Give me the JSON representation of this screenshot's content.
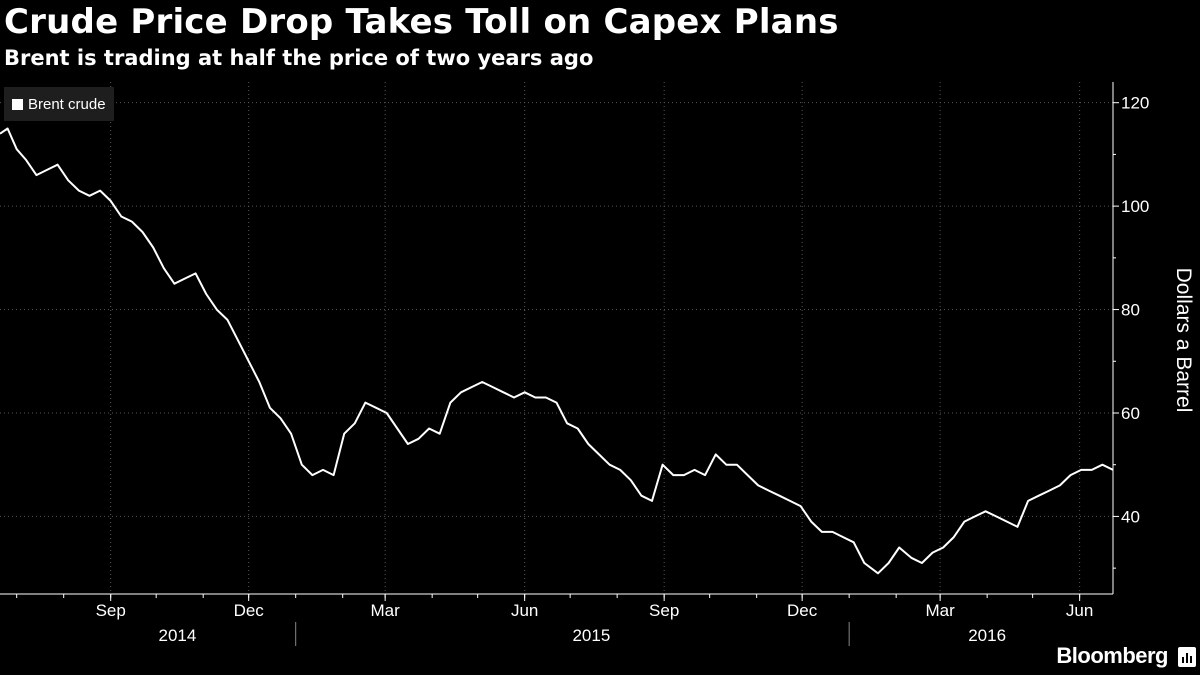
{
  "title": "Crude Price Drop Takes Toll on Capex Plans",
  "subtitle": "Brent is trading at half the price of two years ago",
  "brand": "Bloomberg",
  "colors": {
    "background": "#000000",
    "line": "#ffffff",
    "grid": "#555555",
    "legend_bg": "#1e1e1e"
  },
  "chart_data": {
    "type": "line",
    "title": "Crude Price Drop Takes Toll on Capex Plans",
    "subtitle": "Brent is trading at half the price of two years ago",
    "ylabel": "Dollars a Barrel",
    "xlabel": "",
    "y_axis_side": "right",
    "ylim": [
      25,
      124
    ],
    "xlim": [
      "2014-06-20",
      "2016-06-23"
    ],
    "y_ticks": [
      40,
      60,
      80,
      100,
      120
    ],
    "y_tick_labels": [
      "40",
      "60",
      "80",
      "100",
      "120"
    ],
    "x_ticks": [
      {
        "date": "2014-09-01",
        "label": "Sep"
      },
      {
        "date": "2014-12-01",
        "label": "Dec"
      },
      {
        "date": "2015-03-01",
        "label": "Mar"
      },
      {
        "date": "2015-06-01",
        "label": "Jun"
      },
      {
        "date": "2015-09-01",
        "label": "Sep"
      },
      {
        "date": "2015-12-01",
        "label": "Dec"
      },
      {
        "date": "2016-03-01",
        "label": "Mar"
      },
      {
        "date": "2016-06-01",
        "label": "Jun"
      }
    ],
    "year_labels": [
      {
        "date": "2014-10-15",
        "label": "2014"
      },
      {
        "date": "2015-07-15",
        "label": "2015"
      },
      {
        "date": "2016-04-01",
        "label": "2016"
      }
    ],
    "year_dividers": [
      "2015-01-01",
      "2016-01-01"
    ],
    "grid": true,
    "legend": {
      "position": "top-left",
      "entries": [
        "Brent crude"
      ]
    },
    "series": [
      {
        "name": "Brent crude",
        "color": "#ffffff",
        "x": [
          "2014-06-20",
          "2014-06-25",
          "2014-07-01",
          "2014-07-07",
          "2014-07-14",
          "2014-07-21",
          "2014-07-28",
          "2014-08-04",
          "2014-08-11",
          "2014-08-18",
          "2014-08-25",
          "2014-09-01",
          "2014-09-08",
          "2014-09-15",
          "2014-09-22",
          "2014-09-29",
          "2014-10-06",
          "2014-10-13",
          "2014-10-20",
          "2014-10-27",
          "2014-11-03",
          "2014-11-10",
          "2014-11-17",
          "2014-11-24",
          "2014-12-01",
          "2014-12-08",
          "2014-12-15",
          "2014-12-22",
          "2014-12-29",
          "2015-01-05",
          "2015-01-12",
          "2015-01-19",
          "2015-01-26",
          "2015-02-02",
          "2015-02-09",
          "2015-02-16",
          "2015-02-23",
          "2015-03-02",
          "2015-03-09",
          "2015-03-16",
          "2015-03-23",
          "2015-03-30",
          "2015-04-06",
          "2015-04-13",
          "2015-04-20",
          "2015-04-27",
          "2015-05-04",
          "2015-05-11",
          "2015-05-18",
          "2015-05-25",
          "2015-06-01",
          "2015-06-08",
          "2015-06-15",
          "2015-06-22",
          "2015-06-29",
          "2015-07-06",
          "2015-07-13",
          "2015-07-20",
          "2015-07-27",
          "2015-08-03",
          "2015-08-10",
          "2015-08-17",
          "2015-08-24",
          "2015-08-31",
          "2015-09-07",
          "2015-09-14",
          "2015-09-21",
          "2015-09-28",
          "2015-10-05",
          "2015-10-12",
          "2015-10-19",
          "2015-10-26",
          "2015-11-02",
          "2015-11-09",
          "2015-11-16",
          "2015-11-23",
          "2015-11-30",
          "2015-12-07",
          "2015-12-14",
          "2015-12-21",
          "2015-12-28",
          "2016-01-04",
          "2016-01-11",
          "2016-01-20",
          "2016-01-27",
          "2016-02-03",
          "2016-02-11",
          "2016-02-18",
          "2016-02-25",
          "2016-03-03",
          "2016-03-10",
          "2016-03-17",
          "2016-03-24",
          "2016-03-31",
          "2016-04-07",
          "2016-04-14",
          "2016-04-21",
          "2016-04-28",
          "2016-05-05",
          "2016-05-12",
          "2016-05-19",
          "2016-05-26",
          "2016-06-02",
          "2016-06-09",
          "2016-06-16",
          "2016-06-23"
        ],
        "values": [
          114,
          115,
          111,
          109,
          106,
          107,
          108,
          105,
          103,
          102,
          103,
          101,
          98,
          97,
          95,
          92,
          88,
          85,
          86,
          87,
          83,
          80,
          78,
          74,
          70,
          66,
          61,
          59,
          56,
          50,
          48,
          49,
          48,
          56,
          58,
          62,
          61,
          60,
          57,
          54,
          55,
          57,
          56,
          62,
          64,
          65,
          66,
          65,
          64,
          63,
          64,
          63,
          63,
          62,
          58,
          57,
          54,
          52,
          50,
          49,
          47,
          44,
          43,
          50,
          48,
          48,
          49,
          48,
          52,
          50,
          50,
          48,
          46,
          45,
          44,
          43,
          42,
          39,
          37,
          37,
          36,
          35,
          31,
          29,
          31,
          34,
          32,
          31,
          33,
          34,
          36,
          39,
          40,
          41,
          40,
          39,
          38,
          43,
          44,
          45,
          46,
          48,
          49,
          49,
          50,
          49
        ]
      }
    ]
  }
}
